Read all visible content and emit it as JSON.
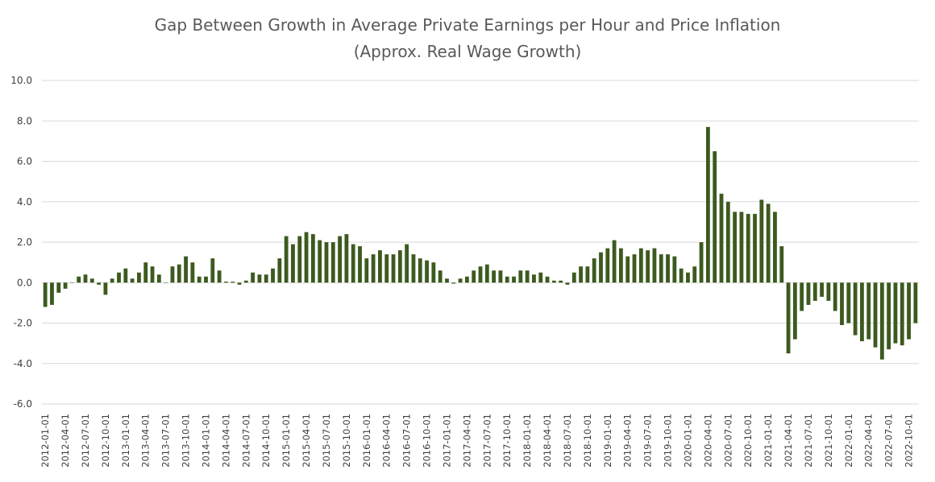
{
  "chart_data": {
    "type": "bar",
    "title": "Gap Between Growth in Average Private Earnings per Hour and Price Inflation",
    "subtitle": "(Approx. Real Wage Growth)",
    "xlabel": "",
    "ylabel": "",
    "ylim": [
      -6.0,
      10.0
    ],
    "yticks": [
      "-6.0",
      "-4.0",
      "-2.0",
      "0.0",
      "2.0",
      "4.0",
      "6.0",
      "8.0",
      "10.0"
    ],
    "grid": true,
    "bar_color": "#3c5a1e",
    "x_tick_labels": [
      "2012-01-01",
      "2012-04-01",
      "2012-07-01",
      "2012-10-01",
      "2013-01-01",
      "2013-04-01",
      "2013-07-01",
      "2013-10-01",
      "2014-01-01",
      "2014-04-01",
      "2014-07-01",
      "2014-10-01",
      "2015-01-01",
      "2015-04-01",
      "2015-07-01",
      "2015-10-01",
      "2016-01-01",
      "2016-04-01",
      "2016-07-01",
      "2016-10-01",
      "2017-01-01",
      "2017-04-01",
      "2017-07-01",
      "2017-10-01",
      "2018-01-01",
      "2018-04-01",
      "2018-07-01",
      "2018-10-01",
      "2019-01-01",
      "2019-04-01",
      "2019-07-01",
      "2019-10-01",
      "2020-01-01",
      "2020-04-01",
      "2020-07-01",
      "2020-10-01",
      "2021-01-01",
      "2021-04-01",
      "2021-07-01",
      "2021-10-01",
      "2022-01-01",
      "2022-04-01",
      "2022-07-01",
      "2022-10-01"
    ],
    "start_month": "2012-01",
    "values": [
      -1.2,
      -1.1,
      -0.5,
      -0.3,
      0.0,
      0.3,
      0.4,
      0.2,
      -0.1,
      -0.6,
      0.2,
      0.5,
      0.7,
      0.2,
      0.5,
      1.0,
      0.8,
      0.4,
      0.0,
      0.8,
      0.9,
      1.3,
      1.0,
      0.3,
      0.3,
      1.2,
      0.6,
      0.05,
      0.05,
      -0.1,
      0.1,
      0.5,
      0.4,
      0.4,
      0.7,
      1.2,
      2.3,
      1.9,
      2.3,
      2.5,
      2.4,
      2.1,
      2.0,
      2.0,
      2.3,
      2.4,
      1.9,
      1.8,
      1.2,
      1.4,
      1.6,
      1.4,
      1.4,
      1.6,
      1.9,
      1.4,
      1.2,
      1.1,
      1.0,
      0.6,
      0.2,
      -0.05,
      0.2,
      0.3,
      0.6,
      0.8,
      0.9,
      0.6,
      0.6,
      0.3,
      0.3,
      0.6,
      0.6,
      0.4,
      0.5,
      0.3,
      0.1,
      0.1,
      -0.1,
      0.5,
      0.8,
      0.8,
      1.2,
      1.5,
      1.7,
      2.1,
      1.7,
      1.3,
      1.4,
      1.7,
      1.6,
      1.7,
      1.4,
      1.4,
      1.3,
      0.7,
      0.5,
      0.8,
      2.0,
      7.7,
      6.5,
      4.4,
      4.0,
      3.5,
      3.5,
      3.4,
      3.4,
      4.1,
      3.9,
      3.5,
      1.8,
      -3.5,
      -2.8,
      -1.4,
      -1.1,
      -0.9,
      -0.7,
      -0.9,
      -1.4,
      -2.1,
      -2.0,
      -2.6,
      -2.9,
      -2.8,
      -3.2,
      -3.8,
      -3.3,
      -3.0,
      -3.1,
      -2.8,
      -2.0
    ]
  }
}
